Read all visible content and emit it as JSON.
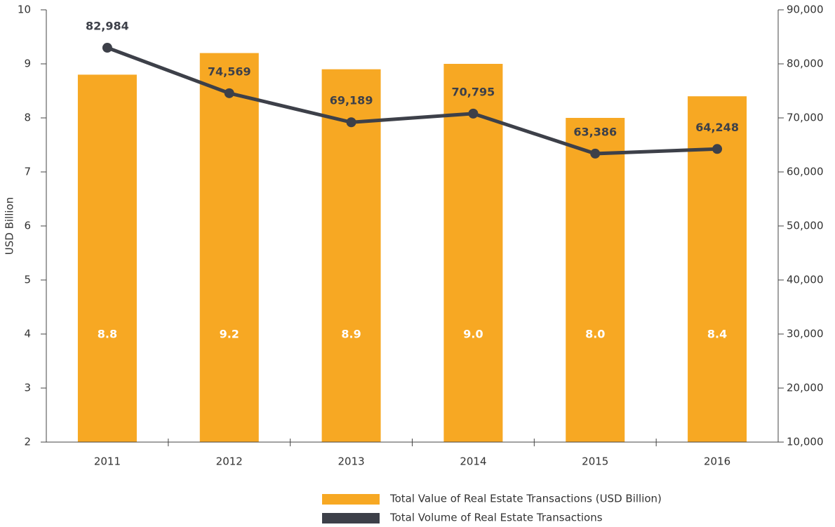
{
  "chart_data": {
    "type": "bar",
    "categories": [
      "2011",
      "2012",
      "2013",
      "2014",
      "2015",
      "2016"
    ],
    "ylabel": "USD Billion",
    "ylim": [
      2,
      10
    ],
    "yticks": [
      2,
      3,
      4,
      5,
      6,
      7,
      8,
      9,
      10
    ],
    "y2lim": [
      10000,
      90000
    ],
    "y2ticks": [
      {
        "value": 10000,
        "label": "10,000"
      },
      {
        "value": 20000,
        "label": "20,000"
      },
      {
        "value": 30000,
        "label": "30,000"
      },
      {
        "value": 40000,
        "label": "40,000"
      },
      {
        "value": 50000,
        "label": "50,000"
      },
      {
        "value": 60000,
        "label": "60,000"
      },
      {
        "value": 70000,
        "label": "70,000"
      },
      {
        "value": 80000,
        "label": "80,000"
      },
      {
        "value": 90000,
        "label": "90,000"
      }
    ],
    "series": [
      {
        "name": "Total Value of Real Estate Transactions (USD Billion)",
        "type": "bar",
        "color": "#f7a823",
        "values": [
          8.8,
          9.2,
          8.9,
          9.0,
          8.0,
          8.4
        ],
        "value_labels": [
          "8.8",
          "9.2",
          "8.9",
          "9.0",
          "8.0",
          "8.4"
        ]
      },
      {
        "name": "Total Volume of Real Estate Transactions",
        "type": "line",
        "axis": "y2",
        "color": "#3d4049",
        "values": [
          82984,
          74569,
          69189,
          70795,
          63386,
          64248
        ],
        "value_labels": [
          "82,984",
          "74,569",
          "69,189",
          "70,795",
          "63,386",
          "64,248"
        ]
      }
    ]
  }
}
